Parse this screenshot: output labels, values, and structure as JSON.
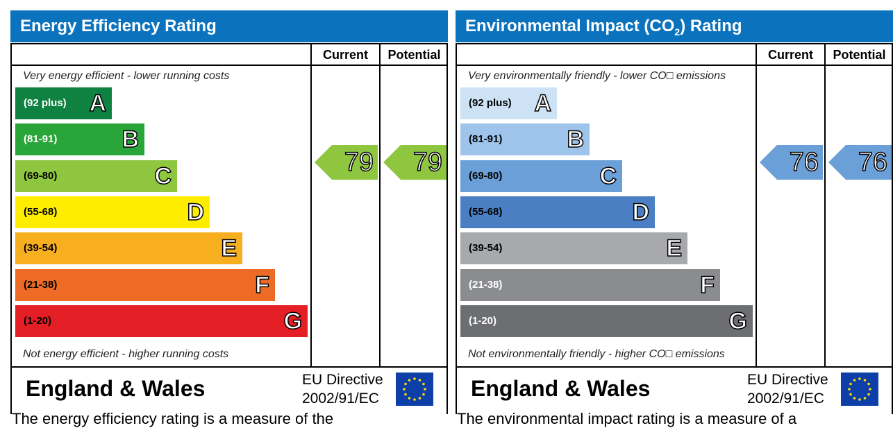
{
  "chart_data": [
    {
      "type": "table",
      "title": "Energy Efficiency Rating",
      "columns": [
        "Current",
        "Potential"
      ],
      "scale_top_label": "Very energy efficient - lower running costs",
      "scale_bottom_label": "Not energy efficient - higher running costs",
      "bands": [
        {
          "letter": "A",
          "range": "(92 plus)",
          "color": "#0f8241",
          "text_color": "#ffffff"
        },
        {
          "letter": "B",
          "range": "(81-91)",
          "color": "#2aa53a",
          "text_color": "#ffffff"
        },
        {
          "letter": "C",
          "range": "(69-80)",
          "color": "#8ec63f",
          "text_color": "#000000"
        },
        {
          "letter": "D",
          "range": "(55-68)",
          "color": "#ffed00",
          "text_color": "#000000"
        },
        {
          "letter": "E",
          "range": "(39-54)",
          "color": "#f7ae1f",
          "text_color": "#000000"
        },
        {
          "letter": "F",
          "range": "(21-38)",
          "color": "#ed6b24",
          "text_color": "#000000"
        },
        {
          "letter": "G",
          "range": "(1-20)",
          "color": "#e31e24",
          "text_color": "#000000"
        }
      ],
      "current": {
        "value": "79",
        "band": "C",
        "color": "#8ec63f"
      },
      "potential": {
        "value": "79",
        "band": "C",
        "color": "#8ec63f"
      },
      "footer": {
        "country": "England & Wales",
        "directive_line1": "EU Directive",
        "directive_line2": "2002/91/EC"
      },
      "caption": "The energy efficiency rating is a measure of the"
    },
    {
      "type": "table",
      "title": "Environmental Impact (CO",
      "title_sub": "2",
      "title_suffix": ") Rating",
      "columns": [
        "Current",
        "Potential"
      ],
      "scale_top_label": "Very environmentally friendly - lower CO□ emissions",
      "scale_bottom_label": "Not environmentally friendly - higher CO□ emissions",
      "bands": [
        {
          "letter": "A",
          "range": "(92 plus)",
          "color": "#cde3f5",
          "text_color": "#000000"
        },
        {
          "letter": "B",
          "range": "(81-91)",
          "color": "#9fc4ec",
          "text_color": "#000000"
        },
        {
          "letter": "C",
          "range": "(69-80)",
          "color": "#6b9fd8",
          "text_color": "#000000"
        },
        {
          "letter": "D",
          "range": "(55-68)",
          "color": "#4a7fc4",
          "text_color": "#000000"
        },
        {
          "letter": "E",
          "range": "(39-54)",
          "color": "#a7a9ac",
          "text_color": "#000000"
        },
        {
          "letter": "F",
          "range": "(21-38)",
          "color": "#8a8c8f",
          "text_color": "#ffffff"
        },
        {
          "letter": "G",
          "range": "(1-20)",
          "color": "#6d6e71",
          "text_color": "#ffffff"
        }
      ],
      "current": {
        "value": "76",
        "band": "C",
        "color": "#6b9fd8"
      },
      "potential": {
        "value": "76",
        "band": "C",
        "color": "#6b9fd8"
      },
      "footer": {
        "country": "England & Wales",
        "directive_line1": "EU Directive",
        "directive_line2": "2002/91/EC"
      },
      "caption": "The environmental impact rating is a measure of a"
    }
  ]
}
